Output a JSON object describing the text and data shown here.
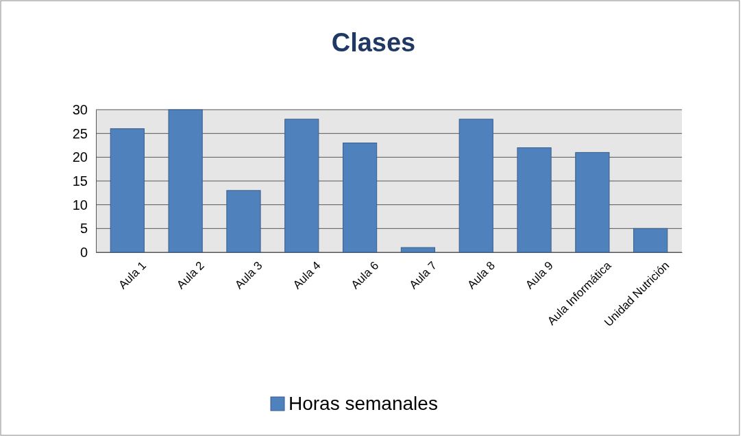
{
  "chart_data": {
    "type": "bar",
    "title": "Clases",
    "categories": [
      "Aula 1",
      "Aula 2",
      "Aula 3",
      "Aula 4",
      "Aula 6",
      "Aula 7",
      "Aula 8",
      "Aula 9",
      "Aula Informática",
      "Unidad Nutrición"
    ],
    "series": [
      {
        "name": "Horas semanales",
        "color": "#4f81bd",
        "values": [
          26,
          30,
          13,
          28,
          23,
          1,
          28,
          22,
          21,
          5
        ]
      }
    ],
    "ylim": [
      0,
      30
    ],
    "yticks": [
      0,
      5,
      10,
      15,
      20,
      25,
      30
    ],
    "grid": "y",
    "legend": "bottom"
  }
}
